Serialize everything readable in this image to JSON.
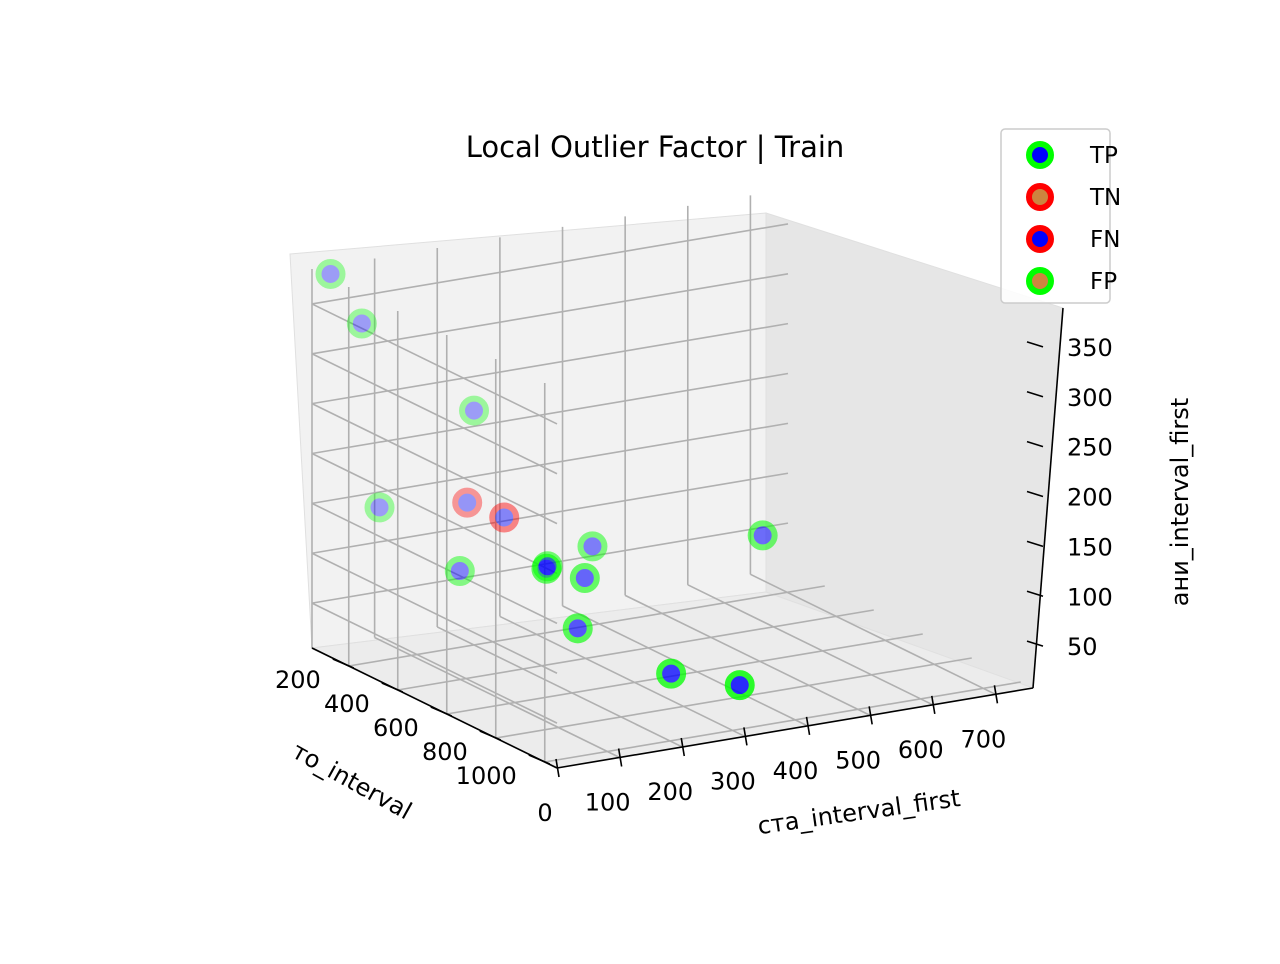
{
  "chart_data": {
    "type": "scatter",
    "projection": "3d",
    "title": "Local Outlier Factor | Train",
    "xlabel": "то_interval",
    "ylabel": "ста_interval_first",
    "zlabel": "ани_interval_first",
    "x_ticks": [
      "200",
      "400",
      "600",
      "800",
      "1000"
    ],
    "y_ticks": [
      "0",
      "100",
      "200",
      "300",
      "400",
      "500",
      "600",
      "700"
    ],
    "z_ticks": [
      "50",
      "100",
      "150",
      "200",
      "250",
      "300",
      "350"
    ],
    "xlim": [
      50,
      1050
    ],
    "ylim": [
      0,
      760
    ],
    "zlim": [
      5,
      385
    ],
    "grid": true,
    "legend_position": "top-right",
    "series": [
      {
        "name": "TP",
        "edge_color": "#00ff00",
        "face_color": "#0000ff",
        "points": [
          {
            "x": 700,
            "y": 120,
            "z": 150
          },
          {
            "x": 500,
            "y": 60,
            "z": 130
          },
          {
            "x": 300,
            "y": 10,
            "z": 175
          },
          {
            "x": 100,
            "y": 10,
            "z": 385
          },
          {
            "x": 100,
            "y": 60,
            "z": 330
          },
          {
            "x": 200,
            "y": 200,
            "z": 240
          },
          {
            "x": 300,
            "y": 350,
            "z": 100
          },
          {
            "x": 700,
            "y": 170,
            "z": 85
          },
          {
            "x": 800,
            "y": 280,
            "z": 40
          },
          {
            "x": 500,
            "y": 200,
            "z": 120
          },
          {
            "x": 550,
            "y": 240,
            "z": 110
          },
          {
            "x": 100,
            "y": 700,
            "z": 50
          },
          {
            "x": 850,
            "y": 370,
            "z": 25
          }
        ]
      },
      {
        "name": "TN",
        "edge_color": "#ff0000",
        "face_color": "#cd853f",
        "points": []
      },
      {
        "name": "FN",
        "edge_color": "#ff0000",
        "face_color": "#0000ff",
        "points": [
          {
            "x": 400,
            "y": 170,
            "z": 160
          },
          {
            "x": 300,
            "y": 150,
            "z": 165
          }
        ]
      },
      {
        "name": "FP",
        "edge_color": "#00ff00",
        "face_color": "#cd853f",
        "points": []
      }
    ]
  }
}
